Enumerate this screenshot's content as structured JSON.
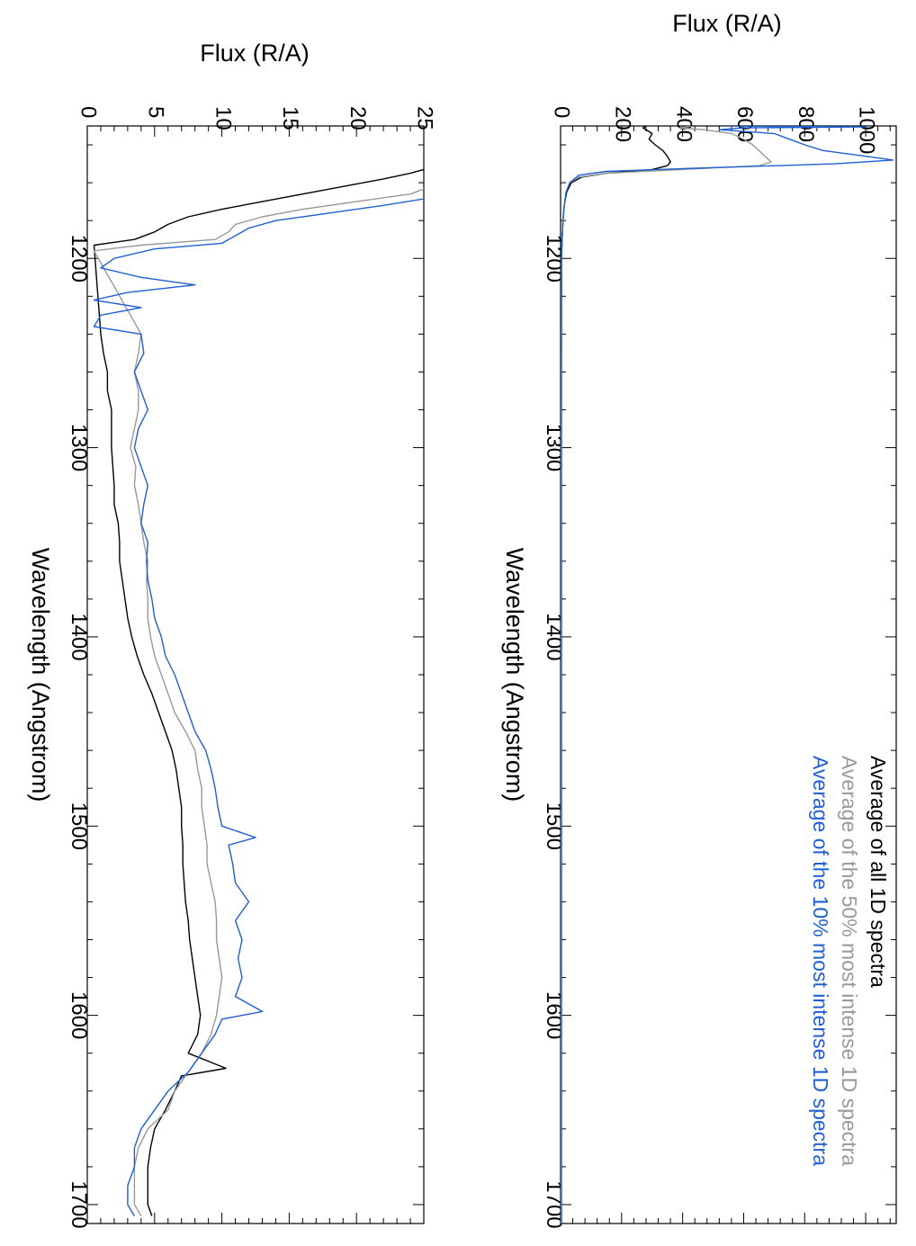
{
  "chart_data": [
    {
      "type": "line",
      "panel": "top",
      "xlabel": "Wavelength (Angstrom)",
      "ylabel": "Flux (R/A)",
      "xlim": [
        1130,
        1710
      ],
      "ylim": [
        0,
        1100
      ],
      "x_ticks": [
        1200,
        1300,
        1400,
        1500,
        1600,
        1700
      ],
      "y_ticks": [
        0,
        200,
        400,
        600,
        800,
        1000
      ],
      "legend_position": "upper right",
      "series": [
        {
          "name": "Average of all 1D spectra",
          "color": "#000000",
          "points": [
            [
              1130,
              280
            ],
            [
              1131,
              270
            ],
            [
              1134,
              300
            ],
            [
              1137,
              290
            ],
            [
              1140,
              310
            ],
            [
              1143,
              335
            ],
            [
              1146,
              350
            ],
            [
              1149,
              360
            ],
            [
              1151,
              350
            ],
            [
              1153,
              300
            ],
            [
              1155,
              150
            ],
            [
              1157,
              70
            ],
            [
              1160,
              35
            ],
            [
              1165,
              20
            ],
            [
              1172,
              12
            ],
            [
              1180,
              8
            ],
            [
              1190,
              5
            ],
            [
              1200,
              3
            ],
            [
              1300,
              2
            ],
            [
              1400,
              1
            ],
            [
              1500,
              1
            ],
            [
              1600,
              1
            ],
            [
              1700,
              1
            ],
            [
              1710,
              1
            ]
          ]
        },
        {
          "name": "Average of the 50% most intense 1D spectra",
          "color": "#999999",
          "points": [
            [
              1130,
              430
            ],
            [
              1131,
              390
            ],
            [
              1132,
              470
            ],
            [
              1134,
              560
            ],
            [
              1137,
              600
            ],
            [
              1140,
              630
            ],
            [
              1143,
              650
            ],
            [
              1146,
              670
            ],
            [
              1149,
              690
            ],
            [
              1151,
              650
            ],
            [
              1153,
              400
            ],
            [
              1155,
              150
            ],
            [
              1157,
              60
            ],
            [
              1160,
              30
            ],
            [
              1165,
              18
            ],
            [
              1172,
              12
            ],
            [
              1180,
              8
            ],
            [
              1190,
              5
            ],
            [
              1200,
              3
            ],
            [
              1300,
              2
            ],
            [
              1400,
              2
            ],
            [
              1500,
              2
            ],
            [
              1600,
              2
            ],
            [
              1700,
              2
            ],
            [
              1710,
              2
            ]
          ]
        },
        {
          "name": "Average of the 10% most intense 1D spectra",
          "color": "#1f5fd1",
          "points": [
            [
              1130,
              530
            ],
            [
              1130.5,
              1000
            ],
            [
              1131,
              600
            ],
            [
              1132,
              520
            ],
            [
              1134,
              700
            ],
            [
              1137,
              750
            ],
            [
              1140,
              800
            ],
            [
              1143,
              860
            ],
            [
              1146,
              1000
            ],
            [
              1148,
              1090
            ],
            [
              1150,
              900
            ],
            [
              1152,
              500
            ],
            [
              1154,
              150
            ],
            [
              1156,
              60
            ],
            [
              1160,
              30
            ],
            [
              1165,
              18
            ],
            [
              1172,
              12
            ],
            [
              1180,
              8
            ],
            [
              1190,
              5
            ],
            [
              1200,
              3
            ],
            [
              1300,
              3
            ],
            [
              1400,
              3
            ],
            [
              1500,
              3
            ],
            [
              1600,
              3
            ],
            [
              1700,
              3
            ],
            [
              1710,
              3
            ]
          ]
        }
      ]
    },
    {
      "type": "line",
      "panel": "bottom",
      "xlabel": "Wavelength (Angstrom)",
      "ylabel": "Flux (R/A)",
      "xlim": [
        1130,
        1710
      ],
      "ylim": [
        0,
        25
      ],
      "x_ticks": [
        1200,
        1300,
        1400,
        1500,
        1600,
        1700
      ],
      "y_ticks": [
        0,
        5,
        10,
        15,
        20,
        25
      ],
      "series": [
        {
          "name": "Average of all 1D spectra",
          "color": "#000000",
          "points": [
            [
              1152,
              25.5
            ],
            [
              1155,
              24
            ],
            [
              1158,
              22
            ],
            [
              1162,
              19
            ],
            [
              1166,
              16
            ],
            [
              1170,
              13
            ],
            [
              1174,
              10
            ],
            [
              1178,
              7.5
            ],
            [
              1182,
              6
            ],
            [
              1186,
              5
            ],
            [
              1190,
              3.5
            ],
            [
              1193,
              0.5
            ],
            [
              1240,
              1.0
            ],
            [
              1250,
              1.2
            ],
            [
              1260,
              1.5
            ],
            [
              1270,
              1.5
            ],
            [
              1280,
              1.8
            ],
            [
              1290,
              1.8
            ],
            [
              1300,
              1.8
            ],
            [
              1310,
              1.9
            ],
            [
              1320,
              2.0
            ],
            [
              1330,
              2.0
            ],
            [
              1340,
              2.3
            ],
            [
              1350,
              2.4
            ],
            [
              1360,
              2.4
            ],
            [
              1370,
              2.6
            ],
            [
              1380,
              2.8
            ],
            [
              1390,
              3.0
            ],
            [
              1400,
              3.3
            ],
            [
              1410,
              3.7
            ],
            [
              1420,
              4.2
            ],
            [
              1430,
              4.8
            ],
            [
              1440,
              5.3
            ],
            [
              1450,
              5.8
            ],
            [
              1460,
              6.3
            ],
            [
              1470,
              6.6
            ],
            [
              1480,
              6.8
            ],
            [
              1490,
              7.0
            ],
            [
              1500,
              7.0
            ],
            [
              1510,
              7.1
            ],
            [
              1520,
              7.1
            ],
            [
              1530,
              7.2
            ],
            [
              1540,
              7.3
            ],
            [
              1550,
              7.5
            ],
            [
              1560,
              7.6
            ],
            [
              1570,
              7.8
            ],
            [
              1580,
              8.0
            ],
            [
              1590,
              8.2
            ],
            [
              1600,
              8.4
            ],
            [
              1610,
              8.2
            ],
            [
              1620,
              7.5
            ],
            [
              1628,
              10.3
            ],
            [
              1632,
              7.0
            ],
            [
              1640,
              6.5
            ],
            [
              1650,
              5.8
            ],
            [
              1660,
              5.0
            ],
            [
              1670,
              4.7
            ],
            [
              1680,
              4.5
            ],
            [
              1690,
              4.5
            ],
            [
              1700,
              4.5
            ],
            [
              1706,
              4.8
            ]
          ]
        },
        {
          "name": "Average of the 50% most intense 1D spectra",
          "color": "#999999",
          "points": [
            [
              1162,
              25.5
            ],
            [
              1166,
              24
            ],
            [
              1170,
              20
            ],
            [
              1174,
              16
            ],
            [
              1178,
              13
            ],
            [
              1182,
              11
            ],
            [
              1186,
              10.5
            ],
            [
              1190,
              9.5
            ],
            [
              1193,
              4
            ],
            [
              1196,
              0.5
            ],
            [
              1240,
              4.0
            ],
            [
              1250,
              3.8
            ],
            [
              1260,
              3.5
            ],
            [
              1270,
              3.8
            ],
            [
              1280,
              3.8
            ],
            [
              1290,
              3.5
            ],
            [
              1300,
              3.2
            ],
            [
              1310,
              3.6
            ],
            [
              1320,
              3.5
            ],
            [
              1330,
              3.8
            ],
            [
              1340,
              4.0
            ],
            [
              1350,
              4.2
            ],
            [
              1360,
              4.5
            ],
            [
              1370,
              4.4
            ],
            [
              1380,
              4.5
            ],
            [
              1390,
              4.5
            ],
            [
              1400,
              4.7
            ],
            [
              1410,
              5.0
            ],
            [
              1420,
              5.5
            ],
            [
              1430,
              6.0
            ],
            [
              1440,
              6.5
            ],
            [
              1450,
              7.3
            ],
            [
              1460,
              8.0
            ],
            [
              1470,
              8.2
            ],
            [
              1480,
              8.5
            ],
            [
              1490,
              8.5
            ],
            [
              1500,
              8.7
            ],
            [
              1510,
              8.9
            ],
            [
              1520,
              8.9
            ],
            [
              1530,
              9.2
            ],
            [
              1540,
              9.5
            ],
            [
              1550,
              9.6
            ],
            [
              1560,
              9.6
            ],
            [
              1570,
              9.8
            ],
            [
              1580,
              10.0
            ],
            [
              1590,
              9.8
            ],
            [
              1600,
              9.6
            ],
            [
              1610,
              9.2
            ],
            [
              1620,
              8.5
            ],
            [
              1630,
              7.5
            ],
            [
              1640,
              6.5
            ],
            [
              1650,
              6.0
            ],
            [
              1660,
              4.5
            ],
            [
              1670,
              3.8
            ],
            [
              1680,
              3.5
            ],
            [
              1690,
              3.5
            ],
            [
              1700,
              3.5
            ],
            [
              1706,
              4.0
            ]
          ]
        },
        {
          "name": "Average of the 10% most intense 1D spectra",
          "color": "#1f5fd1",
          "points": [
            [
              1168,
              25.5
            ],
            [
              1172,
              22
            ],
            [
              1176,
              18
            ],
            [
              1180,
              14
            ],
            [
              1184,
              12
            ],
            [
              1188,
              11
            ],
            [
              1192,
              10
            ],
            [
              1195,
              5
            ],
            [
              1200,
              2
            ],
            [
              1205,
              1
            ],
            [
              1210,
              4
            ],
            [
              1214,
              8
            ],
            [
              1218,
              3
            ],
            [
              1222,
              0.5
            ],
            [
              1226,
              4
            ],
            [
              1230,
              1
            ],
            [
              1236,
              0.5
            ],
            [
              1240,
              4.0
            ],
            [
              1250,
              4.2
            ],
            [
              1260,
              3.5
            ],
            [
              1270,
              4.0
            ],
            [
              1280,
              4.5
            ],
            [
              1290,
              3.8
            ],
            [
              1300,
              3.5
            ],
            [
              1310,
              4.0
            ],
            [
              1320,
              4.5
            ],
            [
              1330,
              4.2
            ],
            [
              1340,
              4.0
            ],
            [
              1350,
              4.5
            ],
            [
              1360,
              4.4
            ],
            [
              1370,
              4.5
            ],
            [
              1380,
              4.8
            ],
            [
              1390,
              5.0
            ],
            [
              1400,
              5.5
            ],
            [
              1410,
              5.8
            ],
            [
              1420,
              6.5
            ],
            [
              1430,
              7.0
            ],
            [
              1440,
              7.5
            ],
            [
              1450,
              8.0
            ],
            [
              1460,
              8.8
            ],
            [
              1470,
              9.2
            ],
            [
              1480,
              9.5
            ],
            [
              1490,
              9.7
            ],
            [
              1500,
              10.0
            ],
            [
              1506,
              12.5
            ],
            [
              1510,
              10.5
            ],
            [
              1520,
              10.8
            ],
            [
              1530,
              11.0
            ],
            [
              1540,
              12.0
            ],
            [
              1550,
              11.0
            ],
            [
              1560,
              11.5
            ],
            [
              1570,
              11.2
            ],
            [
              1580,
              11.5
            ],
            [
              1590,
              11.0
            ],
            [
              1598,
              13.0
            ],
            [
              1602,
              10.0
            ],
            [
              1610,
              9.5
            ],
            [
              1620,
              8.5
            ],
            [
              1630,
              7.5
            ],
            [
              1640,
              6.0
            ],
            [
              1650,
              5.0
            ],
            [
              1660,
              4.0
            ],
            [
              1670,
              3.5
            ],
            [
              1680,
              3.5
            ],
            [
              1690,
              3.0
            ],
            [
              1700,
              3.0
            ],
            [
              1706,
              3.5
            ]
          ]
        }
      ]
    }
  ]
}
